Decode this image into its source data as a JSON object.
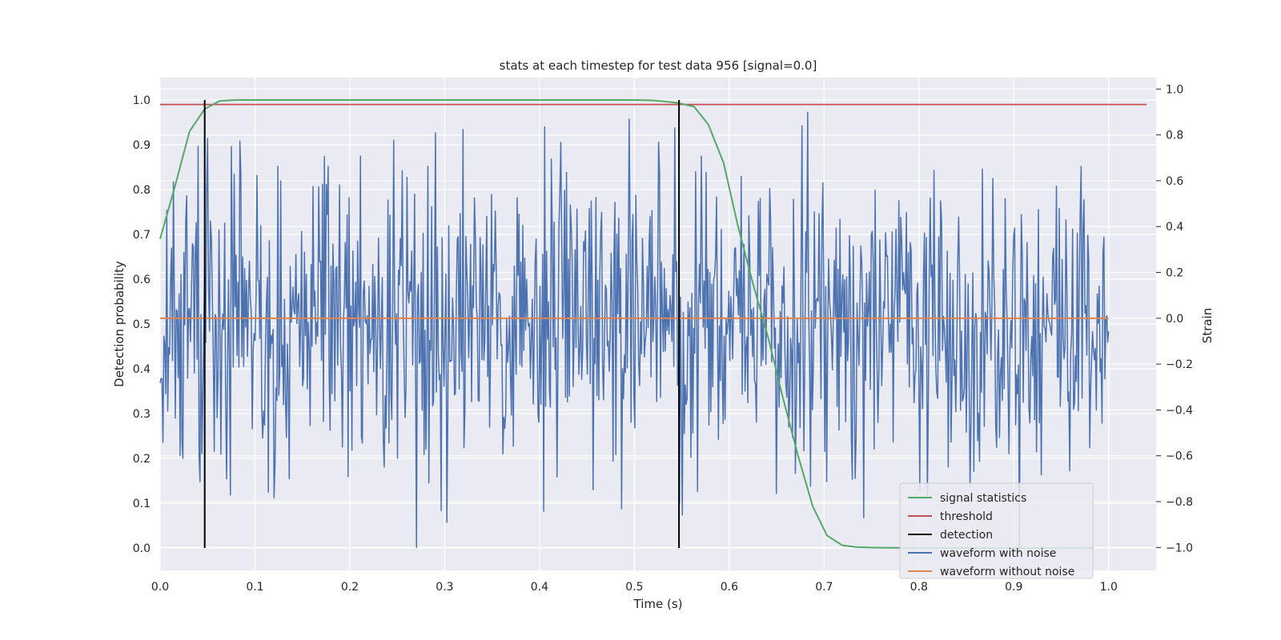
{
  "chart_data": {
    "type": "line",
    "title": "stats at each timestep for test data 956 [signal=0.0]",
    "xlabel": "Time (s)",
    "ylabel_left": "Detection probability",
    "ylabel_right": "Strain",
    "xlim": [
      0.0,
      1.05
    ],
    "ylim_left": [
      -0.05,
      1.05
    ],
    "ylim_right": [
      -1.1,
      1.05
    ],
    "xticks": [
      0.0,
      0.1,
      0.2,
      0.3,
      0.4,
      0.5,
      0.6,
      0.7,
      0.8,
      0.9,
      1.0
    ],
    "xtick_labels": [
      "0.0",
      "0.1",
      "0.2",
      "0.3",
      "0.4",
      "0.5",
      "0.6",
      "0.7",
      "0.8",
      "0.9",
      "1.0"
    ],
    "yticks_left": [
      0.0,
      0.1,
      0.2,
      0.3,
      0.4,
      0.5,
      0.6,
      0.7,
      0.8,
      0.9,
      1.0
    ],
    "ytick_labels_left": [
      "0.0",
      "0.1",
      "0.2",
      "0.3",
      "0.4",
      "0.5",
      "0.6",
      "0.7",
      "0.8",
      "0.9",
      "1.0"
    ],
    "yticks_right": [
      -1.0,
      -0.8,
      -0.6,
      -0.4,
      -0.2,
      0.0,
      0.2,
      0.4,
      0.6,
      0.8,
      1.0
    ],
    "ytick_labels_right": [
      "−1.0",
      "−0.8",
      "−0.6",
      "−0.4",
      "−0.2",
      "0.0",
      "0.2",
      "0.4",
      "0.6",
      "0.8",
      "1.0"
    ],
    "grid": true,
    "legend_position": "lower-right",
    "colors": {
      "background": "#eaeaf2",
      "grid": "#ffffff",
      "signal_statistics": "#55a868",
      "threshold": "#c44e52",
      "detection": "#000000",
      "waveform_with_noise": "#4c72b0",
      "waveform_without_noise": "#dd8452"
    },
    "legend": [
      {
        "key": "signal_statistics",
        "label": "signal statistics"
      },
      {
        "key": "threshold",
        "label": "threshold"
      },
      {
        "key": "detection",
        "label": "detection"
      },
      {
        "key": "waveform_with_noise",
        "label": "waveform with noise"
      },
      {
        "key": "waveform_without_noise",
        "label": "waveform without noise"
      }
    ],
    "series": [
      {
        "key": "signal_statistics",
        "axis": "left",
        "x": [
          0.0,
          0.016,
          0.031,
          0.047,
          0.063,
          0.08,
          0.1,
          0.2,
          0.3,
          0.4,
          0.5,
          0.52,
          0.531,
          0.547,
          0.563,
          0.578,
          0.594,
          0.609,
          0.625,
          0.641,
          0.656,
          0.672,
          0.688,
          0.703,
          0.719,
          0.734,
          0.75,
          0.8,
          0.9,
          0.984
        ],
        "values": [
          0.69,
          0.81,
          0.93,
          0.98,
          0.998,
          1.0,
          1.0,
          1.0,
          1.0,
          1.0,
          1.0,
          0.999,
          0.997,
          0.993,
          0.985,
          0.945,
          0.86,
          0.72,
          0.59,
          0.47,
          0.34,
          0.21,
          0.093,
          0.028,
          0.006,
          0.002,
          0.001,
          0.0,
          0.0,
          0.0
        ]
      },
      {
        "key": "threshold",
        "axis": "left",
        "x": [
          0.0,
          1.04
        ],
        "values": [
          0.99,
          0.99
        ]
      },
      {
        "key": "detection",
        "axis": "left",
        "type": "vlines",
        "x": [
          0.047,
          0.547
        ],
        "ymin": 0.0,
        "ymax": 1.0
      },
      {
        "key": "waveform_with_noise",
        "axis": "right",
        "x_start": 0.0,
        "x_end": 1.0,
        "n_points": 1000,
        "values_rms": 0.33,
        "values_range": [
          -1.0,
          1.0
        ]
      },
      {
        "key": "waveform_without_noise",
        "axis": "right",
        "x": [
          0.0,
          1.0
        ],
        "values": [
          0.0,
          0.0
        ]
      }
    ]
  }
}
